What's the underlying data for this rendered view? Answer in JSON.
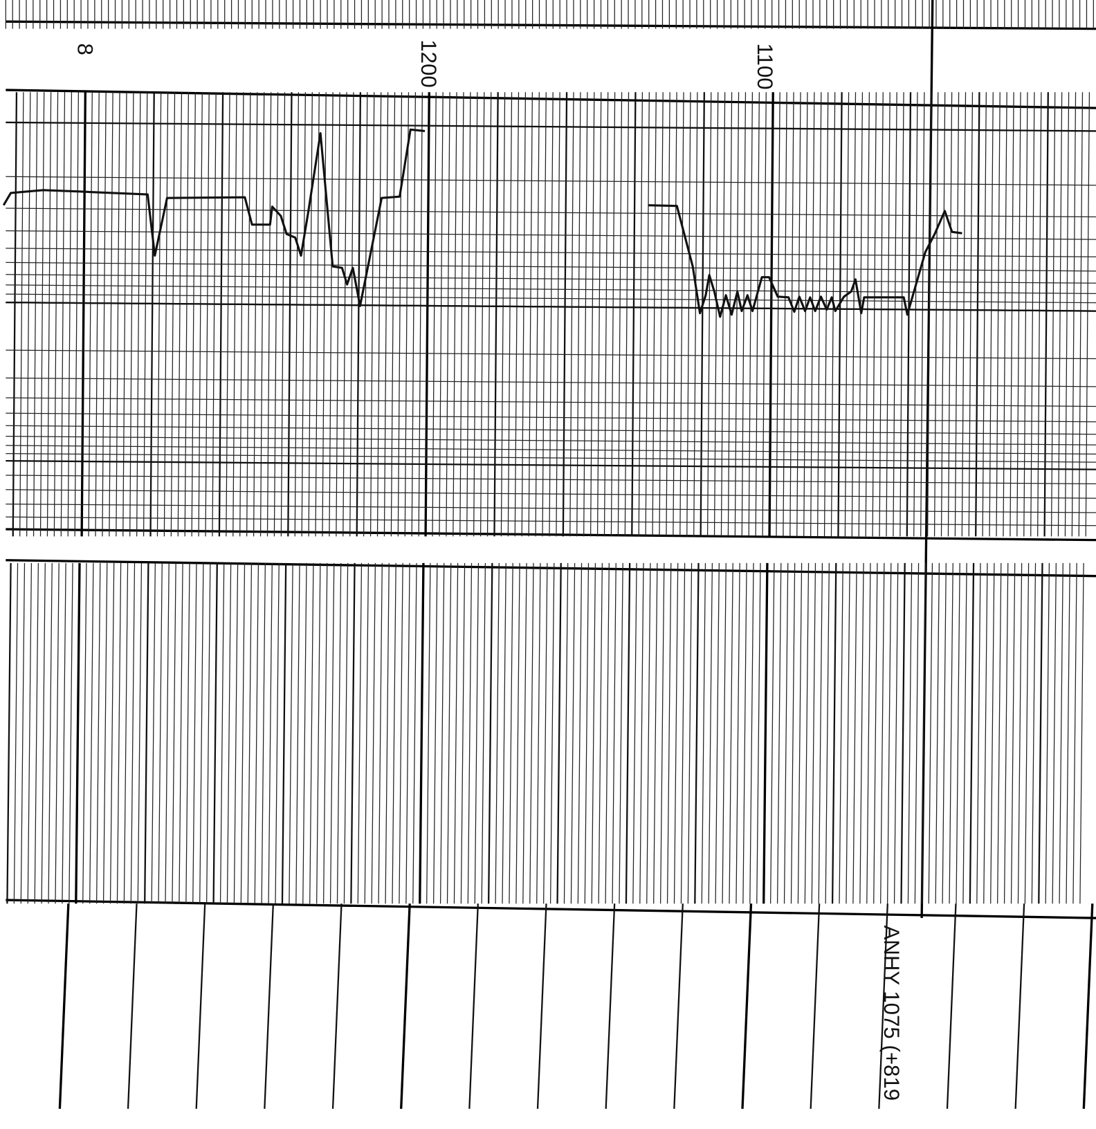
{
  "depth_labels": [
    "8",
    "1200",
    "1100"
  ],
  "annotation": "ANHY 1075 (+819"
}
